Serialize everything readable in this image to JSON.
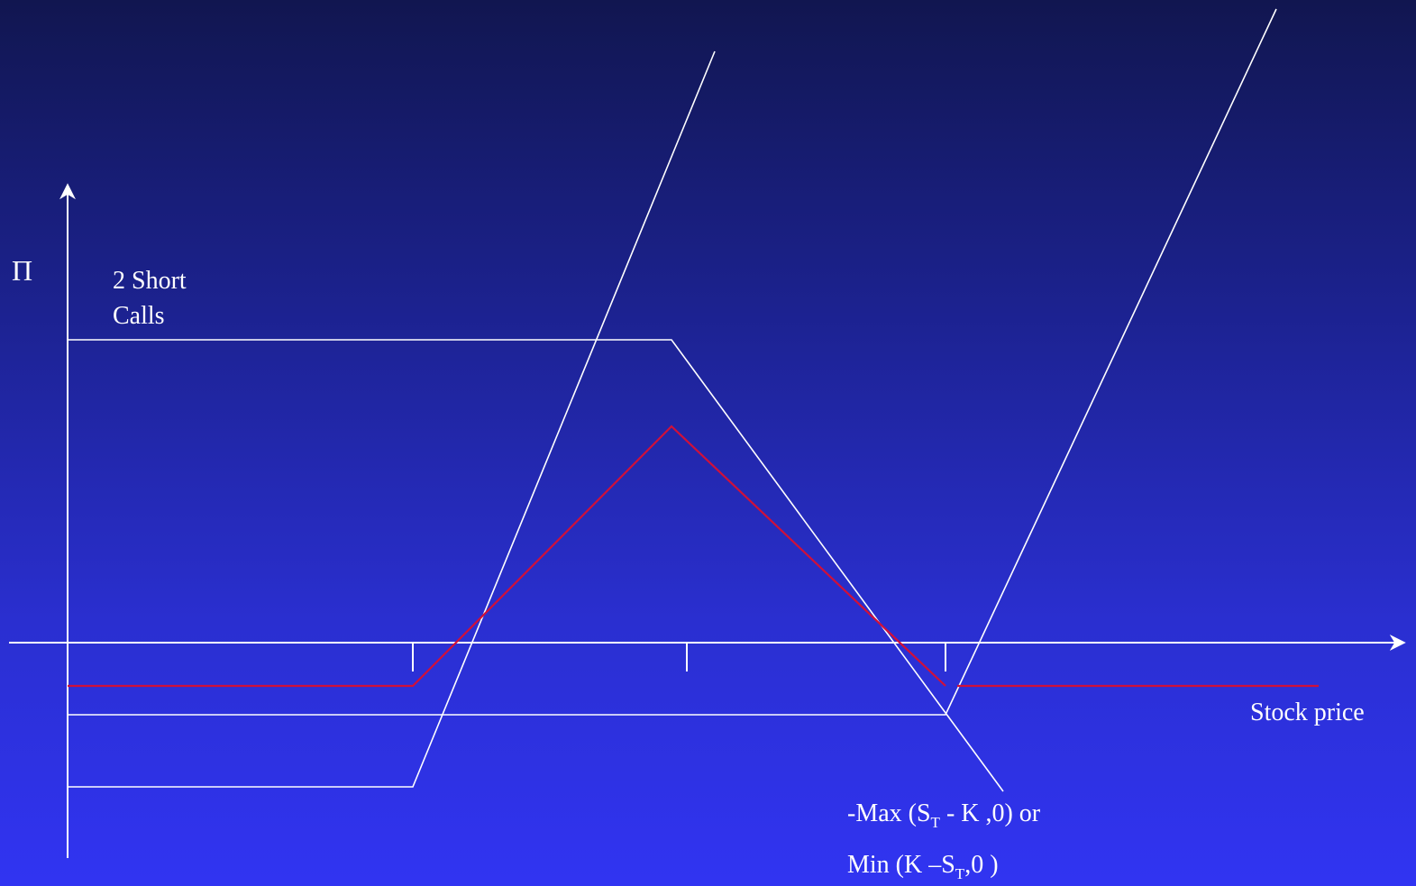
{
  "axes": {
    "y_label": "Π",
    "x_label": "Stock price"
  },
  "labels": {
    "short_calls_line1": "2 Short",
    "short_calls_line2": "Calls",
    "payoff_line1_prefix": "-Max (S",
    "payoff_line1_sub": "T",
    "payoff_line1_suffix": " - K ,0) or",
    "payoff_line2_prefix": "Min (K –S",
    "payoff_line2_sub": "T",
    "payoff_line2_suffix": ",0 )"
  },
  "colors": {
    "payoff_lines": "#ffffff",
    "net_payoff": "#d0103a"
  }
}
